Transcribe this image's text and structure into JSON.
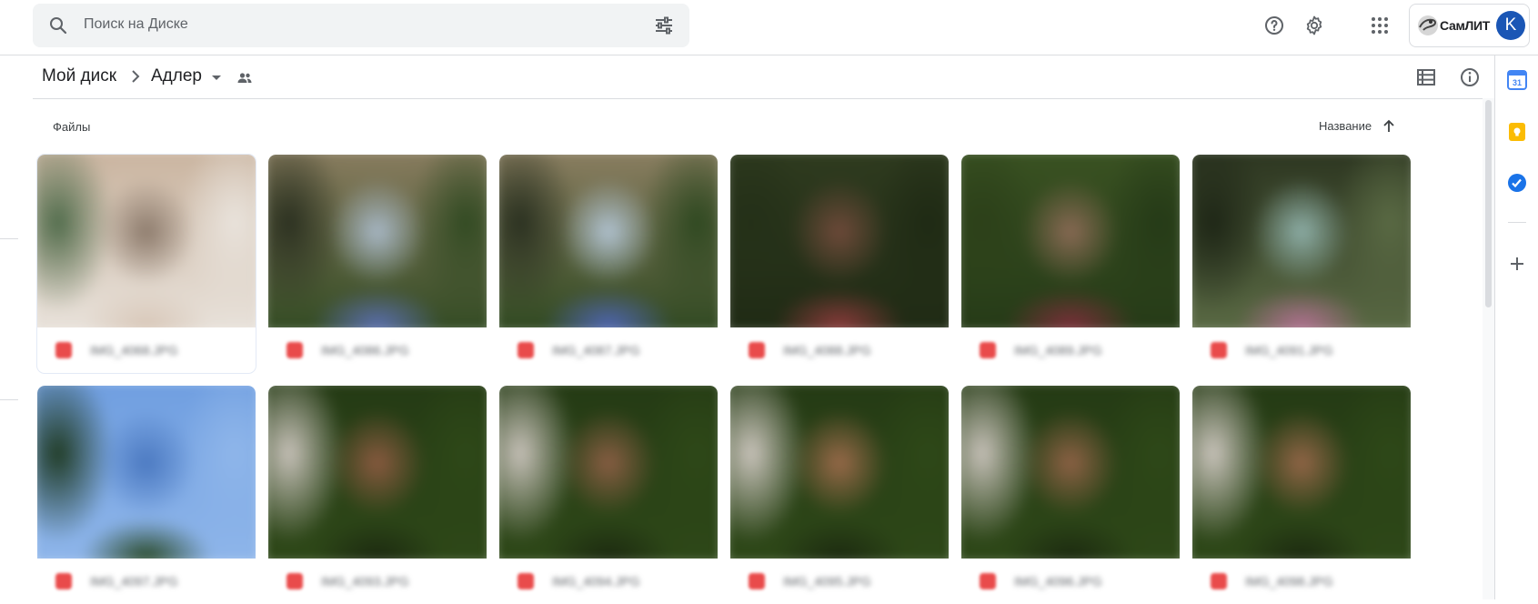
{
  "search": {
    "placeholder": "Поиск на Диске",
    "search_icon": "search-icon",
    "options_icon": "tune-icon"
  },
  "header": {
    "help_icon": "help-icon",
    "settings_icon": "gear-icon",
    "apps_icon": "apps-grid-icon",
    "account": {
      "org_name": "СамЛИТ",
      "avatar_letter": "K",
      "avatar_color": "#1a56b5"
    }
  },
  "breadcrumb": {
    "root": "Мой диск",
    "current": "Адлер"
  },
  "toolbar": {
    "list_view_icon": "list-view-icon",
    "info_icon": "info-icon"
  },
  "files": {
    "section_label": "Файлы",
    "sort_label": "Название",
    "sort_direction": "ascending",
    "items": [
      {
        "name": "IMG_4068.JPG",
        "colors": [
          "#c9b39e",
          "#e9e3dc",
          "#8c7a6b",
          "#4f6b4a",
          "#d8c7b8"
        ]
      },
      {
        "name": "IMG_4086.JPG",
        "colors": [
          "#8a7d60",
          "#314a22",
          "#a9b9c8",
          "#2b3020",
          "#5b6fb0"
        ]
      },
      {
        "name": "IMG_4087.JPG",
        "colors": [
          "#8c7f62",
          "#2e4820",
          "#b2c4d3",
          "#2a3020",
          "#4f66b3"
        ]
      },
      {
        "name": "IMG_4088.JPG",
        "colors": [
          "#2f3b1f",
          "#1f2a14",
          "#6f4a3a",
          "#243018",
          "#8a3b3b"
        ]
      },
      {
        "name": "IMG_4089.JPG",
        "colors": [
          "#3a5222",
          "#253a17",
          "#8a6a55",
          "#2c4019",
          "#7b2f3a"
        ]
      },
      {
        "name": "IMG_4091.JPG",
        "colors": [
          "#2c3520",
          "#5a6a44",
          "#8fb0a9",
          "#1e2616",
          "#b07090"
        ]
      },
      {
        "name": "IMG_4097.JPG",
        "colors": [
          "#6f9ee0",
          "#8fb6ea",
          "#4a78c0",
          "#1f3a22",
          "#2a4a2a"
        ]
      },
      {
        "name": "IMG_4093.JPG",
        "colors": [
          "#243a14",
          "#2e4818",
          "#8a5a40",
          "#c9c3bb",
          "#1c2a10"
        ]
      },
      {
        "name": "IMG_4094.JPG",
        "colors": [
          "#243a14",
          "#2e4818",
          "#8a5e44",
          "#c9c3bb",
          "#1c2a10"
        ]
      },
      {
        "name": "IMG_4095.JPG",
        "colors": [
          "#243a14",
          "#2e4818",
          "#9a6a4a",
          "#ccc6be",
          "#1c2a10"
        ]
      },
      {
        "name": "IMG_4096.JPG",
        "colors": [
          "#243a14",
          "#2e4818",
          "#8f6246",
          "#c9c3bb",
          "#1c2a10"
        ]
      },
      {
        "name": "IMG_4098.JPG",
        "colors": [
          "#243a14",
          "#2e4818",
          "#946648",
          "#ccc6be",
          "#1c2a10"
        ]
      }
    ]
  },
  "side_panel": {
    "apps": [
      "calendar-icon",
      "keep-icon",
      "tasks-icon",
      "add-icon"
    ]
  }
}
